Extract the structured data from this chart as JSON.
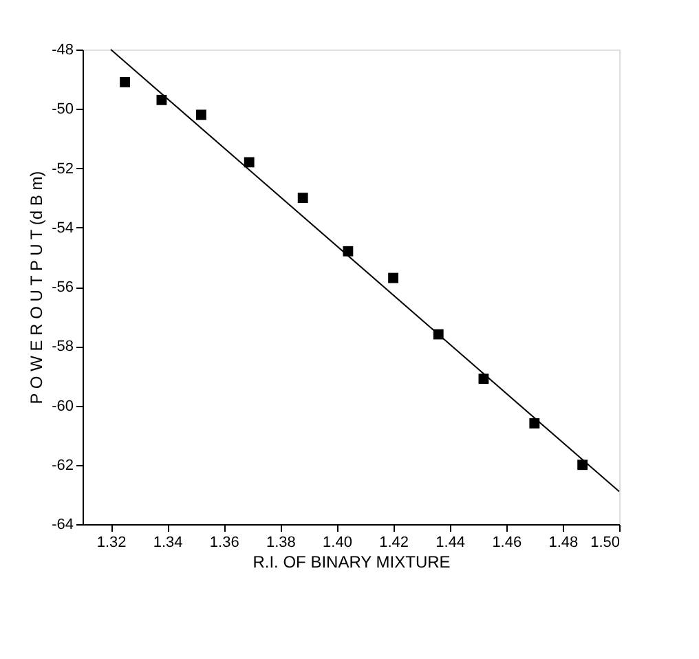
{
  "chart_data": {
    "type": "scatter",
    "xlabel": "R.I. OF BINARY MIXTURE",
    "ylabel": "P O W E R   O U T P U T  (d B m)",
    "xlim": [
      1.31,
      1.5
    ],
    "ylim": [
      -64,
      -48
    ],
    "xticks": [
      1.32,
      1.34,
      1.36,
      1.38,
      {
        "value": 1.4,
        "label": "1.40"
      },
      1.42,
      1.44,
      1.46,
      1.48,
      {
        "value": 1.5,
        "label": "1.50"
      }
    ],
    "yticks": [
      -64,
      -62,
      -60,
      -58,
      -56,
      -54,
      -52,
      -50,
      -48
    ],
    "grid": false,
    "series": [
      {
        "marker": "square",
        "color": "#000000",
        "x": [
          1.325,
          1.338,
          1.352,
          1.369,
          1.388,
          1.404,
          1.42,
          1.436,
          1.452,
          1.47,
          1.487
        ],
        "values": [
          -49.1,
          -49.7,
          -50.2,
          -51.8,
          -53.0,
          -54.8,
          -55.7,
          -57.6,
          -59.1,
          -60.6,
          -62.0
        ]
      },
      {
        "type": "line",
        "line_style": "solid",
        "color": "#000000",
        "x": [
          1.32,
          1.5
        ],
        "values": [
          -48,
          -62.9
        ]
      }
    ]
  }
}
